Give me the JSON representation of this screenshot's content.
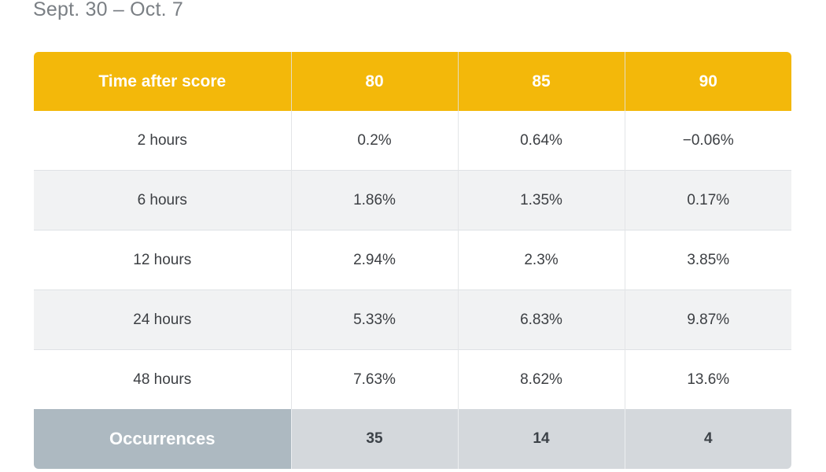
{
  "subtitle": "Sept. 30 – Oct. 7",
  "table": {
    "header": [
      "Time after score",
      "80",
      "85",
      "90"
    ],
    "rows": [
      [
        "2 hours",
        "0.2%",
        "0.64%",
        "−0.06%"
      ],
      [
        "6 hours",
        "1.86%",
        "1.35%",
        "0.17%"
      ],
      [
        "12 hours",
        "2.94%",
        "2.3%",
        "3.85%"
      ],
      [
        "24 hours",
        "5.33%",
        "6.83%",
        "9.87%"
      ],
      [
        "48 hours",
        "7.63%",
        "8.62%",
        "13.6%"
      ]
    ],
    "footer": [
      "Occurrences",
      "35",
      "14",
      "4"
    ]
  },
  "colors": {
    "header_background": "#f3b80a",
    "header_text": "#ffffff",
    "footer_label_background": "#adb9c1",
    "footer_background": "#d4d8dc",
    "stripe_background": "#f1f2f3"
  }
}
